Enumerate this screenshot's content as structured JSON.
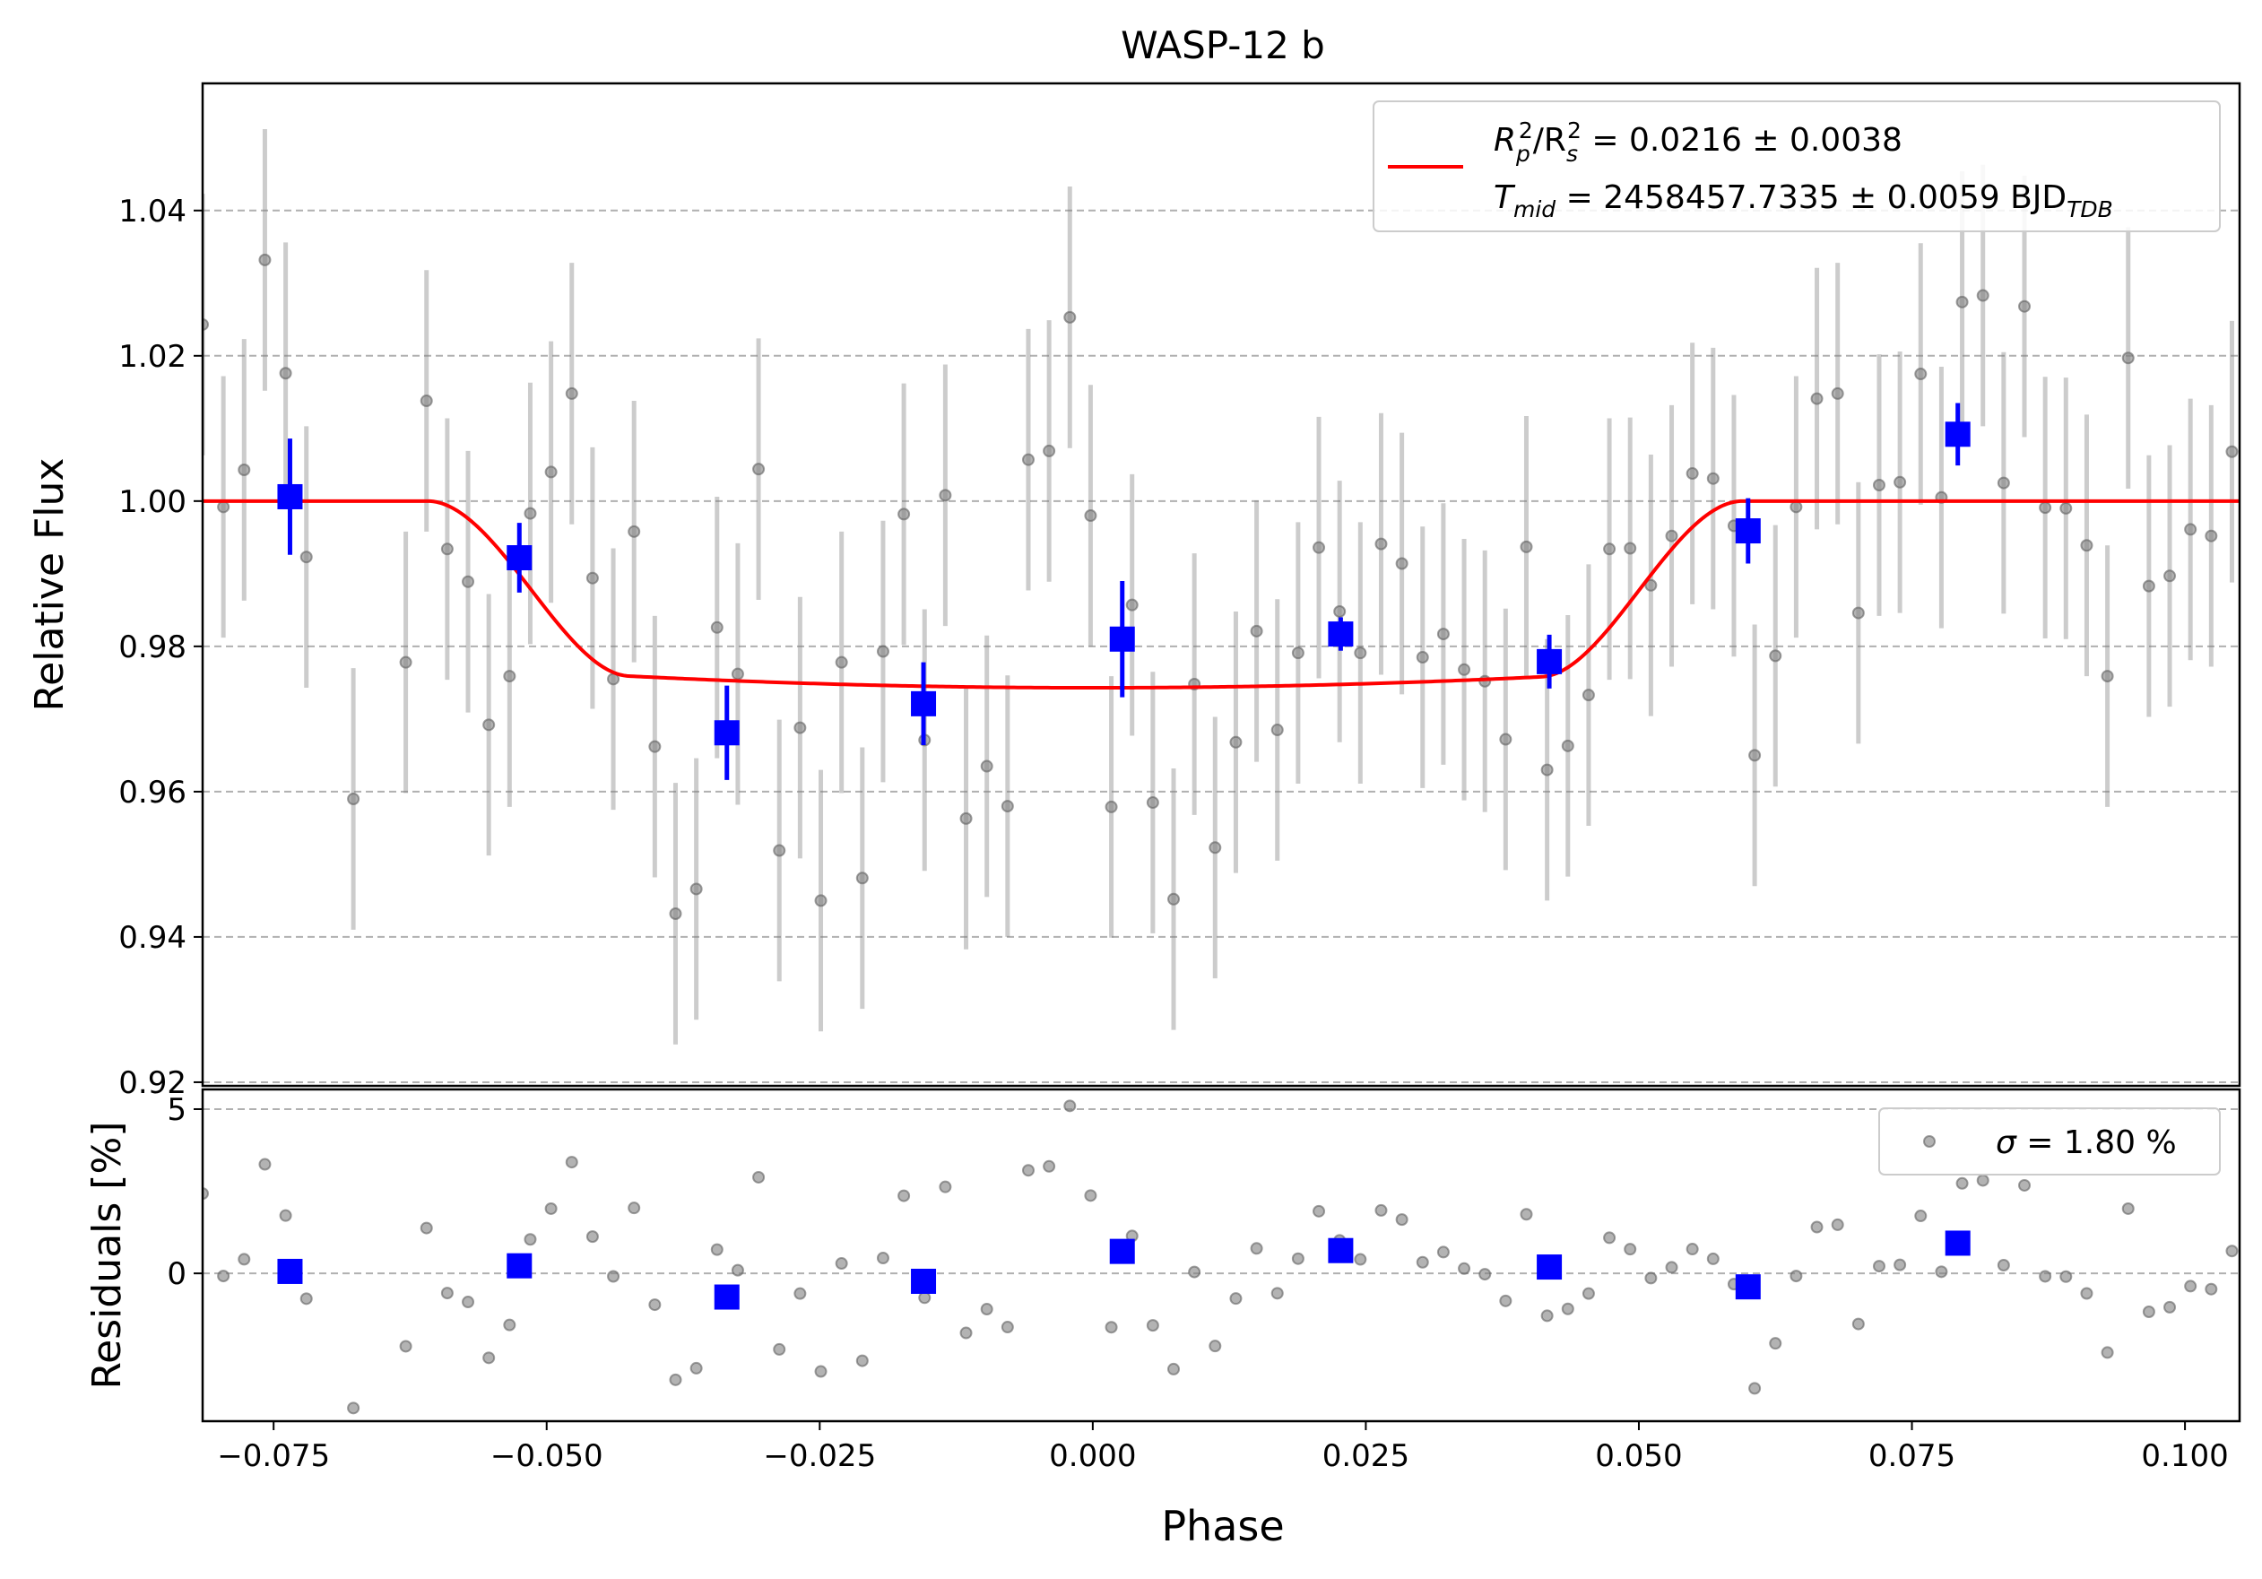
{
  "chart_data": [
    {
      "type": "scatter",
      "title": "WASP-12 b",
      "xlabel": "Phase",
      "ylabel": "Relative Flux",
      "xlim": [
        -0.0815,
        0.105
      ],
      "ylim": [
        0.9195,
        1.0575
      ],
      "yticks": [
        0.92,
        0.94,
        0.96,
        0.98,
        1.0,
        1.02,
        1.04
      ],
      "ytick_labels": [
        "0.92",
        "0.94",
        "0.96",
        "0.98",
        "1.00",
        "1.02",
        "1.04"
      ],
      "grid": "horizontal dashed",
      "legend_position": "top-right",
      "legend": [
        {
          "series": "transit model",
          "prefix": "R",
          "prefix_sub": "p",
          "prefix_sup": "2",
          "mid": "/R",
          "mid_sub": "s",
          "mid_sup": "2",
          "text": " = 0.0216 ± 0.0038"
        },
        {
          "series": "transit model",
          "prefix": "T",
          "prefix_sub": "mid",
          "text": " = 2458457.7335 ± 0.0059 BJD",
          "suffix_sub": "TDB"
        }
      ],
      "model": {
        "color": "#ff0000",
        "depth": 0.0257,
        "ingress_start": -0.0609,
        "ingress_end": -0.0425,
        "egress_start": 0.0411,
        "egress_end": 0.0595
      },
      "data_points": {
        "color": "#808080",
        "x": [
          -0.0815,
          -0.0796,
          -0.0777,
          -0.0758,
          -0.0739,
          -0.072,
          -0.0677,
          -0.0629,
          -0.061,
          -0.0591,
          -0.0572,
          -0.0553,
          -0.0534,
          -0.0515,
          -0.0496,
          -0.0477,
          -0.0458,
          -0.0439,
          -0.042,
          -0.0401,
          -0.0382,
          -0.0363,
          -0.0344,
          -0.0325,
          -0.0306,
          -0.0287,
          -0.0268,
          -0.0249,
          -0.023,
          -0.0211,
          -0.0192,
          -0.0173,
          -0.0154,
          -0.0135,
          -0.0116,
          -0.0097,
          -0.0078,
          -0.0059,
          -0.004,
          -0.0021,
          -0.0002,
          0.0017,
          0.0036,
          0.0055,
          0.0074,
          0.0093,
          0.0112,
          0.0131,
          0.015,
          0.0169,
          0.0188,
          0.0207,
          0.0226,
          0.0245,
          0.0264,
          0.0283,
          0.0302,
          0.0321,
          0.034,
          0.0359,
          0.0378,
          0.0397,
          0.0416,
          0.0435,
          0.0454,
          0.0473,
          0.0492,
          0.0511,
          0.053,
          0.0549,
          0.0568,
          0.0587,
          0.0606,
          0.0625,
          0.0644,
          0.0663,
          0.0682,
          0.0701,
          0.072,
          0.0739,
          0.0758,
          0.0777,
          0.0796,
          0.0815,
          0.0834,
          0.0853,
          0.0872,
          0.0891,
          0.091,
          0.0929,
          0.0948,
          0.0967,
          0.0986,
          0.1005,
          0.1024,
          0.1043
        ],
        "y": [
          1.0243,
          0.9992,
          1.0043,
          1.0332,
          1.0176,
          0.9923,
          0.959,
          0.9778,
          1.0138,
          0.9934,
          0.9889,
          0.9692,
          0.9759,
          0.9983,
          1.004,
          1.0148,
          0.9894,
          0.9755,
          0.9958,
          0.9662,
          0.9432,
          0.9466,
          0.9826,
          0.9762,
          1.0044,
          0.9519,
          0.9688,
          0.945,
          0.9778,
          0.9481,
          0.9793,
          0.9982,
          0.9671,
          1.0008,
          0.9563,
          0.9635,
          0.958,
          1.0057,
          1.0069,
          1.0253,
          0.998,
          0.9579,
          0.9857,
          0.9585,
          0.9452,
          0.9748,
          0.9523,
          0.9668,
          0.9821,
          0.9685,
          0.9791,
          0.9936,
          0.9848,
          0.9791,
          0.9941,
          0.9914,
          0.9785,
          0.9817,
          0.9768,
          0.9752,
          0.9672,
          0.9937,
          0.963,
          0.9663,
          0.9733,
          0.9934,
          0.9935,
          0.9884,
          0.9952,
          1.0038,
          1.0031,
          0.9966,
          0.965,
          0.9787,
          0.9992,
          1.0141,
          1.0148,
          0.9846,
          1.0022,
          1.0026,
          1.0175,
          1.0005,
          1.0274,
          1.0283,
          1.0025,
          1.0268,
          0.9991,
          0.999,
          0.9939,
          0.9759,
          1.0197,
          0.9883,
          0.9897,
          0.9961,
          0.9952,
          1.0068
        ],
        "yerr": 0.018
      },
      "binned": {
        "color": "#0000ff",
        "x": [
          -0.0735,
          -0.0525,
          -0.0335,
          -0.0155,
          0.0027,
          0.0227,
          0.0418,
          0.06,
          0.0792
        ],
        "y": [
          1.0006,
          0.9922,
          0.9681,
          0.9721,
          0.981,
          0.9817,
          0.9779,
          0.9959,
          1.0092
        ],
        "yerr": [
          0.008,
          0.0048,
          0.0065,
          0.0057,
          0.008,
          0.0023,
          0.0037,
          0.0045,
          0.0043
        ]
      }
    },
    {
      "type": "scatter",
      "xlabel": "Phase",
      "ylabel": "Residuals [%]",
      "xlim": [
        -0.0815,
        0.105
      ],
      "ylim": [
        -4.5,
        5.6
      ],
      "yticks": [
        0,
        5
      ],
      "ytick_labels": [
        "0",
        "5"
      ],
      "xticks": [
        -0.075,
        -0.05,
        -0.025,
        0.0,
        0.025,
        0.05,
        0.075,
        0.1
      ],
      "xtick_labels": [
        "−0.075",
        "−0.050",
        "−0.025",
        "0.000",
        "0.025",
        "0.050",
        "0.075",
        "0.100"
      ],
      "grid": "horizontal dashed",
      "legend_position": "top-right",
      "legend": [
        {
          "series": "residuals",
          "label": "σ",
          "text": " = 1.80 %"
        }
      ],
      "units": "%"
    }
  ]
}
